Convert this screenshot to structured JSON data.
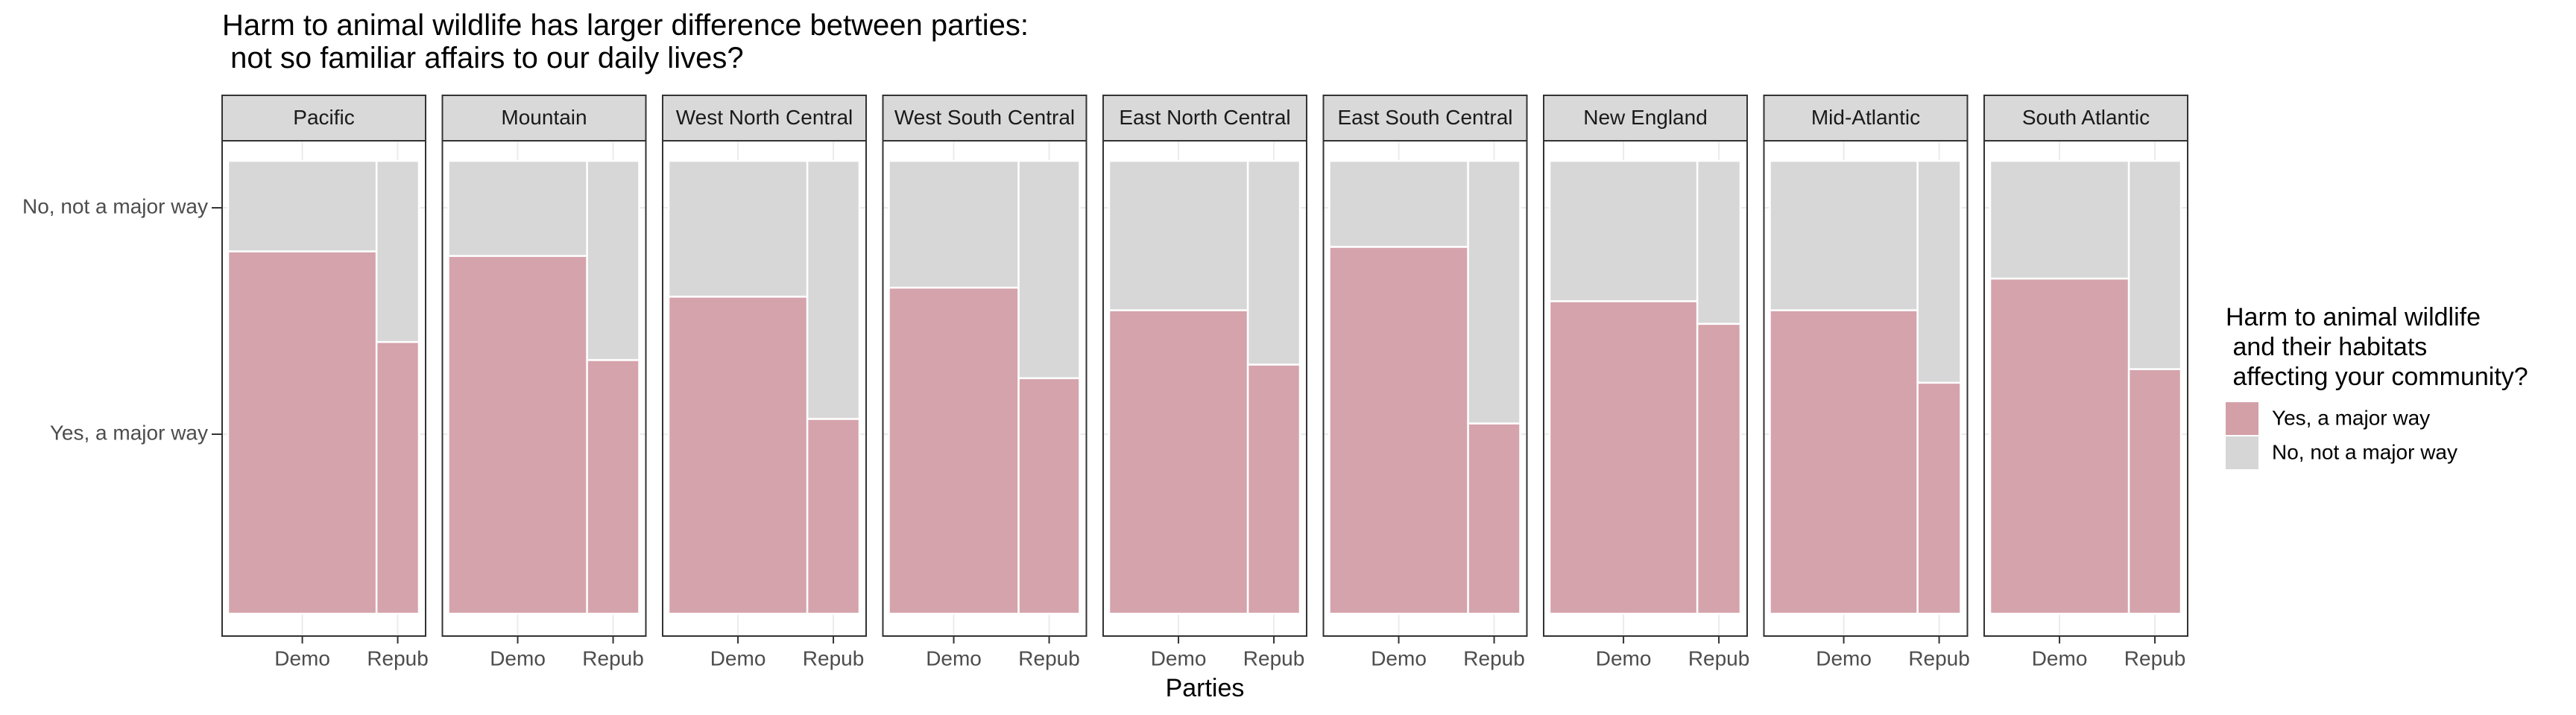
{
  "chart_data": {
    "type": "mosaic",
    "title_lines": [
      "Harm to animal wildlife has larger difference between parties:",
      " not so familiar affairs to our daily lives?"
    ],
    "xlabel": "Parties",
    "x_categories": [
      "Demo",
      "Repub"
    ],
    "y_categories": [
      "Yes, a major way",
      "No, not a major way"
    ],
    "legend": {
      "title_lines": [
        "Harm to animal wildlife",
        " and their habitats",
        " affecting your community?"
      ],
      "position": "right",
      "entries": [
        {
          "label": "Yes, a major way",
          "color": "#d4a0a8"
        },
        {
          "label": "No, not a major way",
          "color": "#d6d6d6"
        }
      ]
    },
    "colors": {
      "yes": "#d4a0a8",
      "no": "#d6d6d6",
      "strip": "#d9d9d9",
      "grid": "#ebebeb"
    },
    "grid": true,
    "panels": [
      {
        "region": "Pacific",
        "demo_share": 0.778,
        "demo_yes": 0.8,
        "repub_yes": 0.6
      },
      {
        "region": "Mountain",
        "demo_share": 0.727,
        "demo_yes": 0.79,
        "repub_yes": 0.56
      },
      {
        "region": "West North Central",
        "demo_share": 0.727,
        "demo_yes": 0.7,
        "repub_yes": 0.43
      },
      {
        "region": "West South Central",
        "demo_share": 0.68,
        "demo_yes": 0.72,
        "repub_yes": 0.52
      },
      {
        "region": "East North Central",
        "demo_share": 0.727,
        "demo_yes": 0.67,
        "repub_yes": 0.55
      },
      {
        "region": "East South Central",
        "demo_share": 0.727,
        "demo_yes": 0.81,
        "repub_yes": 0.42
      },
      {
        "region": "New England",
        "demo_share": 0.774,
        "demo_yes": 0.69,
        "repub_yes": 0.64
      },
      {
        "region": "Mid-Atlantic",
        "demo_share": 0.774,
        "demo_yes": 0.67,
        "repub_yes": 0.51
      },
      {
        "region": "South Atlantic",
        "demo_share": 0.727,
        "demo_yes": 0.74,
        "repub_yes": 0.54
      }
    ]
  }
}
